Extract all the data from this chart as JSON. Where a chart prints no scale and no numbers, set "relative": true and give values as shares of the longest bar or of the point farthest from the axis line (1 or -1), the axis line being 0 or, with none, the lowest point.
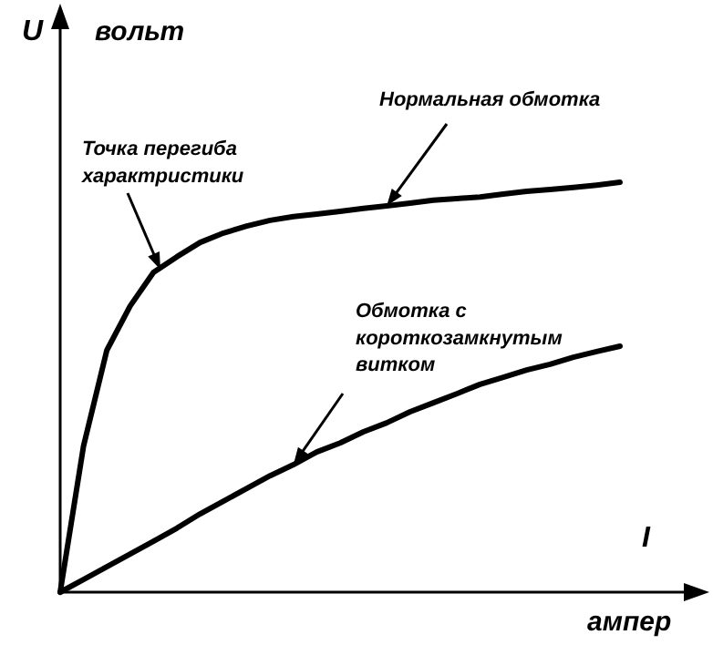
{
  "chart_data": {
    "type": "line",
    "relative": true,
    "xlabel": "I",
    "ylabel": "U",
    "line_style": "solid",
    "categories": [
      null,
      null,
      null,
      null,
      null,
      null,
      null,
      null,
      null,
      null,
      null,
      null,
      null,
      null,
      null,
      null,
      null,
      null,
      null,
      null,
      null,
      null,
      null,
      null,
      null
    ],
    "series": [
      {
        "name": "Нормальная обмотка",
        "color": "#000000",
        "values": [
          0,
          0.356,
          0.59,
          0.698,
          0.78,
          0.818,
          0.853,
          0.876,
          0.893,
          0.907,
          0.916,
          0.922,
          0.929,
          0.936,
          0.942,
          0.949,
          0.956,
          0.96,
          0.964,
          0.971,
          0.978,
          0.982,
          0.987,
          0.993,
          1
        ]
      },
      {
        "name": "Обмотка с\nкороткозамкнутым\nвитком",
        "color": "#000000",
        "values": [
          0,
          0.031,
          0.062,
          0.093,
          0.124,
          0.156,
          0.191,
          0.222,
          0.253,
          0.284,
          0.311,
          0.342,
          0.364,
          0.391,
          0.413,
          0.44,
          0.462,
          0.484,
          0.507,
          0.524,
          0.542,
          0.556,
          0.573,
          0.587,
          0.6
        ]
      }
    ],
    "annotations": [
      "Точка перегиба\nхарактристики",
      "вольт",
      "ампер"
    ]
  }
}
